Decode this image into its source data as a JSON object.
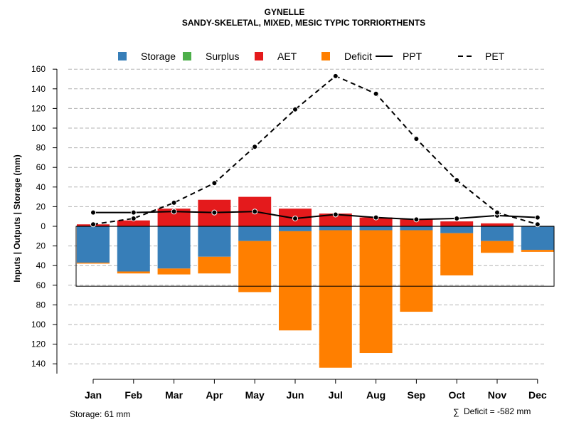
{
  "chart_data": {
    "type": "bar",
    "title": "GYNELLE",
    "subtitle": "SANDY-SKELETAL, MIXED, MESIC TYPIC TORRIORTHENTS",
    "ylabel": "Inputs | Outputs | Storage    (mm)",
    "ylim": [
      -150,
      160
    ],
    "yticks": [
      -140,
      -120,
      -100,
      -80,
      -60,
      -40,
      -20,
      0,
      20,
      40,
      60,
      80,
      100,
      120,
      140,
      160
    ],
    "ytick_labels": [
      "140",
      "120",
      "100",
      "80",
      "60",
      "40",
      "20",
      "0",
      "20",
      "40",
      "60",
      "80",
      "100",
      "120",
      "140",
      "160"
    ],
    "grid": true,
    "categories": [
      "Jan",
      "Feb",
      "Mar",
      "Apr",
      "May",
      "Jun",
      "Jul",
      "Aug",
      "Sep",
      "Oct",
      "Nov",
      "Dec"
    ],
    "legend": {
      "position": "top",
      "items": [
        {
          "label": "Storage",
          "kind": "box",
          "color": "#377EB8"
        },
        {
          "label": "Surplus",
          "kind": "box",
          "color": "#4DAF4A"
        },
        {
          "label": "AET",
          "kind": "box",
          "color": "#E41A1C"
        },
        {
          "label": "Deficit",
          "kind": "box",
          "color": "#FF7F00"
        },
        {
          "label": "PPT",
          "kind": "solid",
          "color": "#000000"
        },
        {
          "label": "PET",
          "kind": "dashed",
          "color": "#000000"
        }
      ]
    },
    "series": [
      {
        "name": "AET",
        "color": "#E41A1C",
        "values": [
          2,
          6,
          18,
          27,
          30,
          18,
          13,
          9,
          7,
          5,
          3,
          0
        ]
      },
      {
        "name": "Surplus",
        "color": "#4DAF4A",
        "values": [
          0,
          0,
          0,
          0,
          0,
          0,
          0,
          0,
          0,
          0,
          0,
          0
        ]
      },
      {
        "name": "Storage",
        "color": "#377EB8",
        "values": [
          37,
          46,
          43,
          31,
          15,
          5,
          4,
          4,
          4,
          7,
          15,
          24
        ]
      },
      {
        "name": "Deficit",
        "color": "#FF7F00",
        "values": [
          1,
          2,
          6,
          17,
          52,
          101,
          140,
          125,
          83,
          43,
          12,
          2
        ]
      },
      {
        "name": "PPT",
        "color": "#000000",
        "values": [
          14,
          14,
          15,
          14,
          15,
          8,
          12,
          9,
          7,
          8,
          11,
          9
        ]
      },
      {
        "name": "PET",
        "color": "#000000",
        "values": [
          2,
          8,
          24,
          44,
          81,
          119,
          153,
          135,
          89,
          47,
          14,
          2
        ]
      }
    ],
    "storage_capacity": 61,
    "footer_left": "Storage: 61 mm",
    "footer_right_symbol": "∑",
    "footer_right": "Deficit = -582 mm"
  }
}
